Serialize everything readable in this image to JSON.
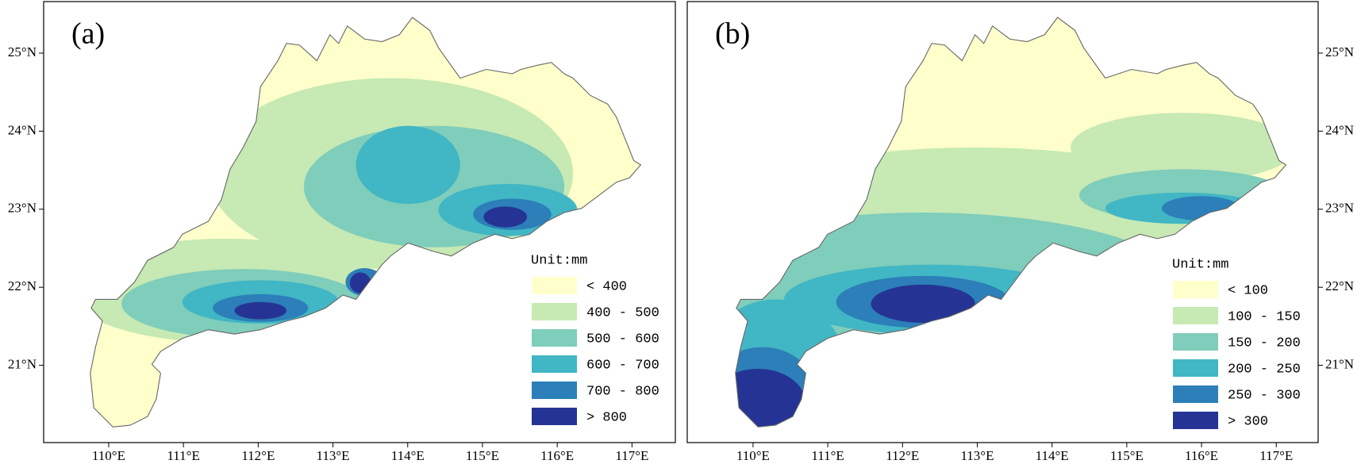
{
  "panels": [
    {
      "label": "(a)",
      "yaxis": "left",
      "xlim": [
        109.13,
        117.58
      ],
      "ylim": [
        20.01,
        25.66
      ],
      "xticks": [
        {
          "value": 110,
          "label": "110°E"
        },
        {
          "value": 111,
          "label": "111°E"
        },
        {
          "value": 112,
          "label": "112°E"
        },
        {
          "value": 113,
          "label": "113°E"
        },
        {
          "value": 114,
          "label": "114°E"
        },
        {
          "value": 115,
          "label": "115°E"
        },
        {
          "value": 116,
          "label": "116°E"
        },
        {
          "value": 117,
          "label": "117°E"
        }
      ],
      "yticks": [
        {
          "value": 21,
          "label": "21°N"
        },
        {
          "value": 22,
          "label": "22°N"
        },
        {
          "value": 23,
          "label": "23°N"
        },
        {
          "value": 24,
          "label": "24°N"
        },
        {
          "value": 25,
          "label": "25°N"
        }
      ],
      "legend": {
        "title": "Unit:mm",
        "items": [
          {
            "label": "< 400",
            "color": "#ffffcc"
          },
          {
            "label": "400 - 500",
            "color": "#c7e9b4"
          },
          {
            "label": "500 - 600",
            "color": "#7fcdbb"
          },
          {
            "label": "600 - 700",
            "color": "#41b6c4"
          },
          {
            "label": "700 - 800",
            "color": "#2c7fb8"
          },
          {
            "label": "> 800",
            "color": "#253494"
          }
        ]
      }
    },
    {
      "label": "(b)",
      "yaxis": "right",
      "xlim": [
        109.12,
        117.56
      ],
      "ylim": [
        20.01,
        25.66
      ],
      "xticks": [
        {
          "value": 110,
          "label": "110°E"
        },
        {
          "value": 111,
          "label": "111°E"
        },
        {
          "value": 112,
          "label": "112°E"
        },
        {
          "value": 113,
          "label": "113°E"
        },
        {
          "value": 114,
          "label": "114°E"
        },
        {
          "value": 115,
          "label": "115°E"
        },
        {
          "value": 116,
          "label": "116°E"
        },
        {
          "value": 117,
          "label": "117°E"
        }
      ],
      "yticks": [
        {
          "value": 21,
          "label": "21°N"
        },
        {
          "value": 22,
          "label": "22°N"
        },
        {
          "value": 23,
          "label": "23°N"
        },
        {
          "value": 24,
          "label": "24°N"
        },
        {
          "value": 25,
          "label": "25°N"
        }
      ],
      "legend": {
        "title": "Unit:mm",
        "items": [
          {
            "label": "< 100",
            "color": "#ffffcc"
          },
          {
            "label": "100 - 150",
            "color": "#c7e9b4"
          },
          {
            "label": "150 - 200",
            "color": "#7fcdbb"
          },
          {
            "label": "200 - 250",
            "color": "#41b6c4"
          },
          {
            "label": "250 - 300",
            "color": "#2c7fb8"
          },
          {
            "label": "> 300",
            "color": "#253494"
          }
        ]
      }
    }
  ]
}
